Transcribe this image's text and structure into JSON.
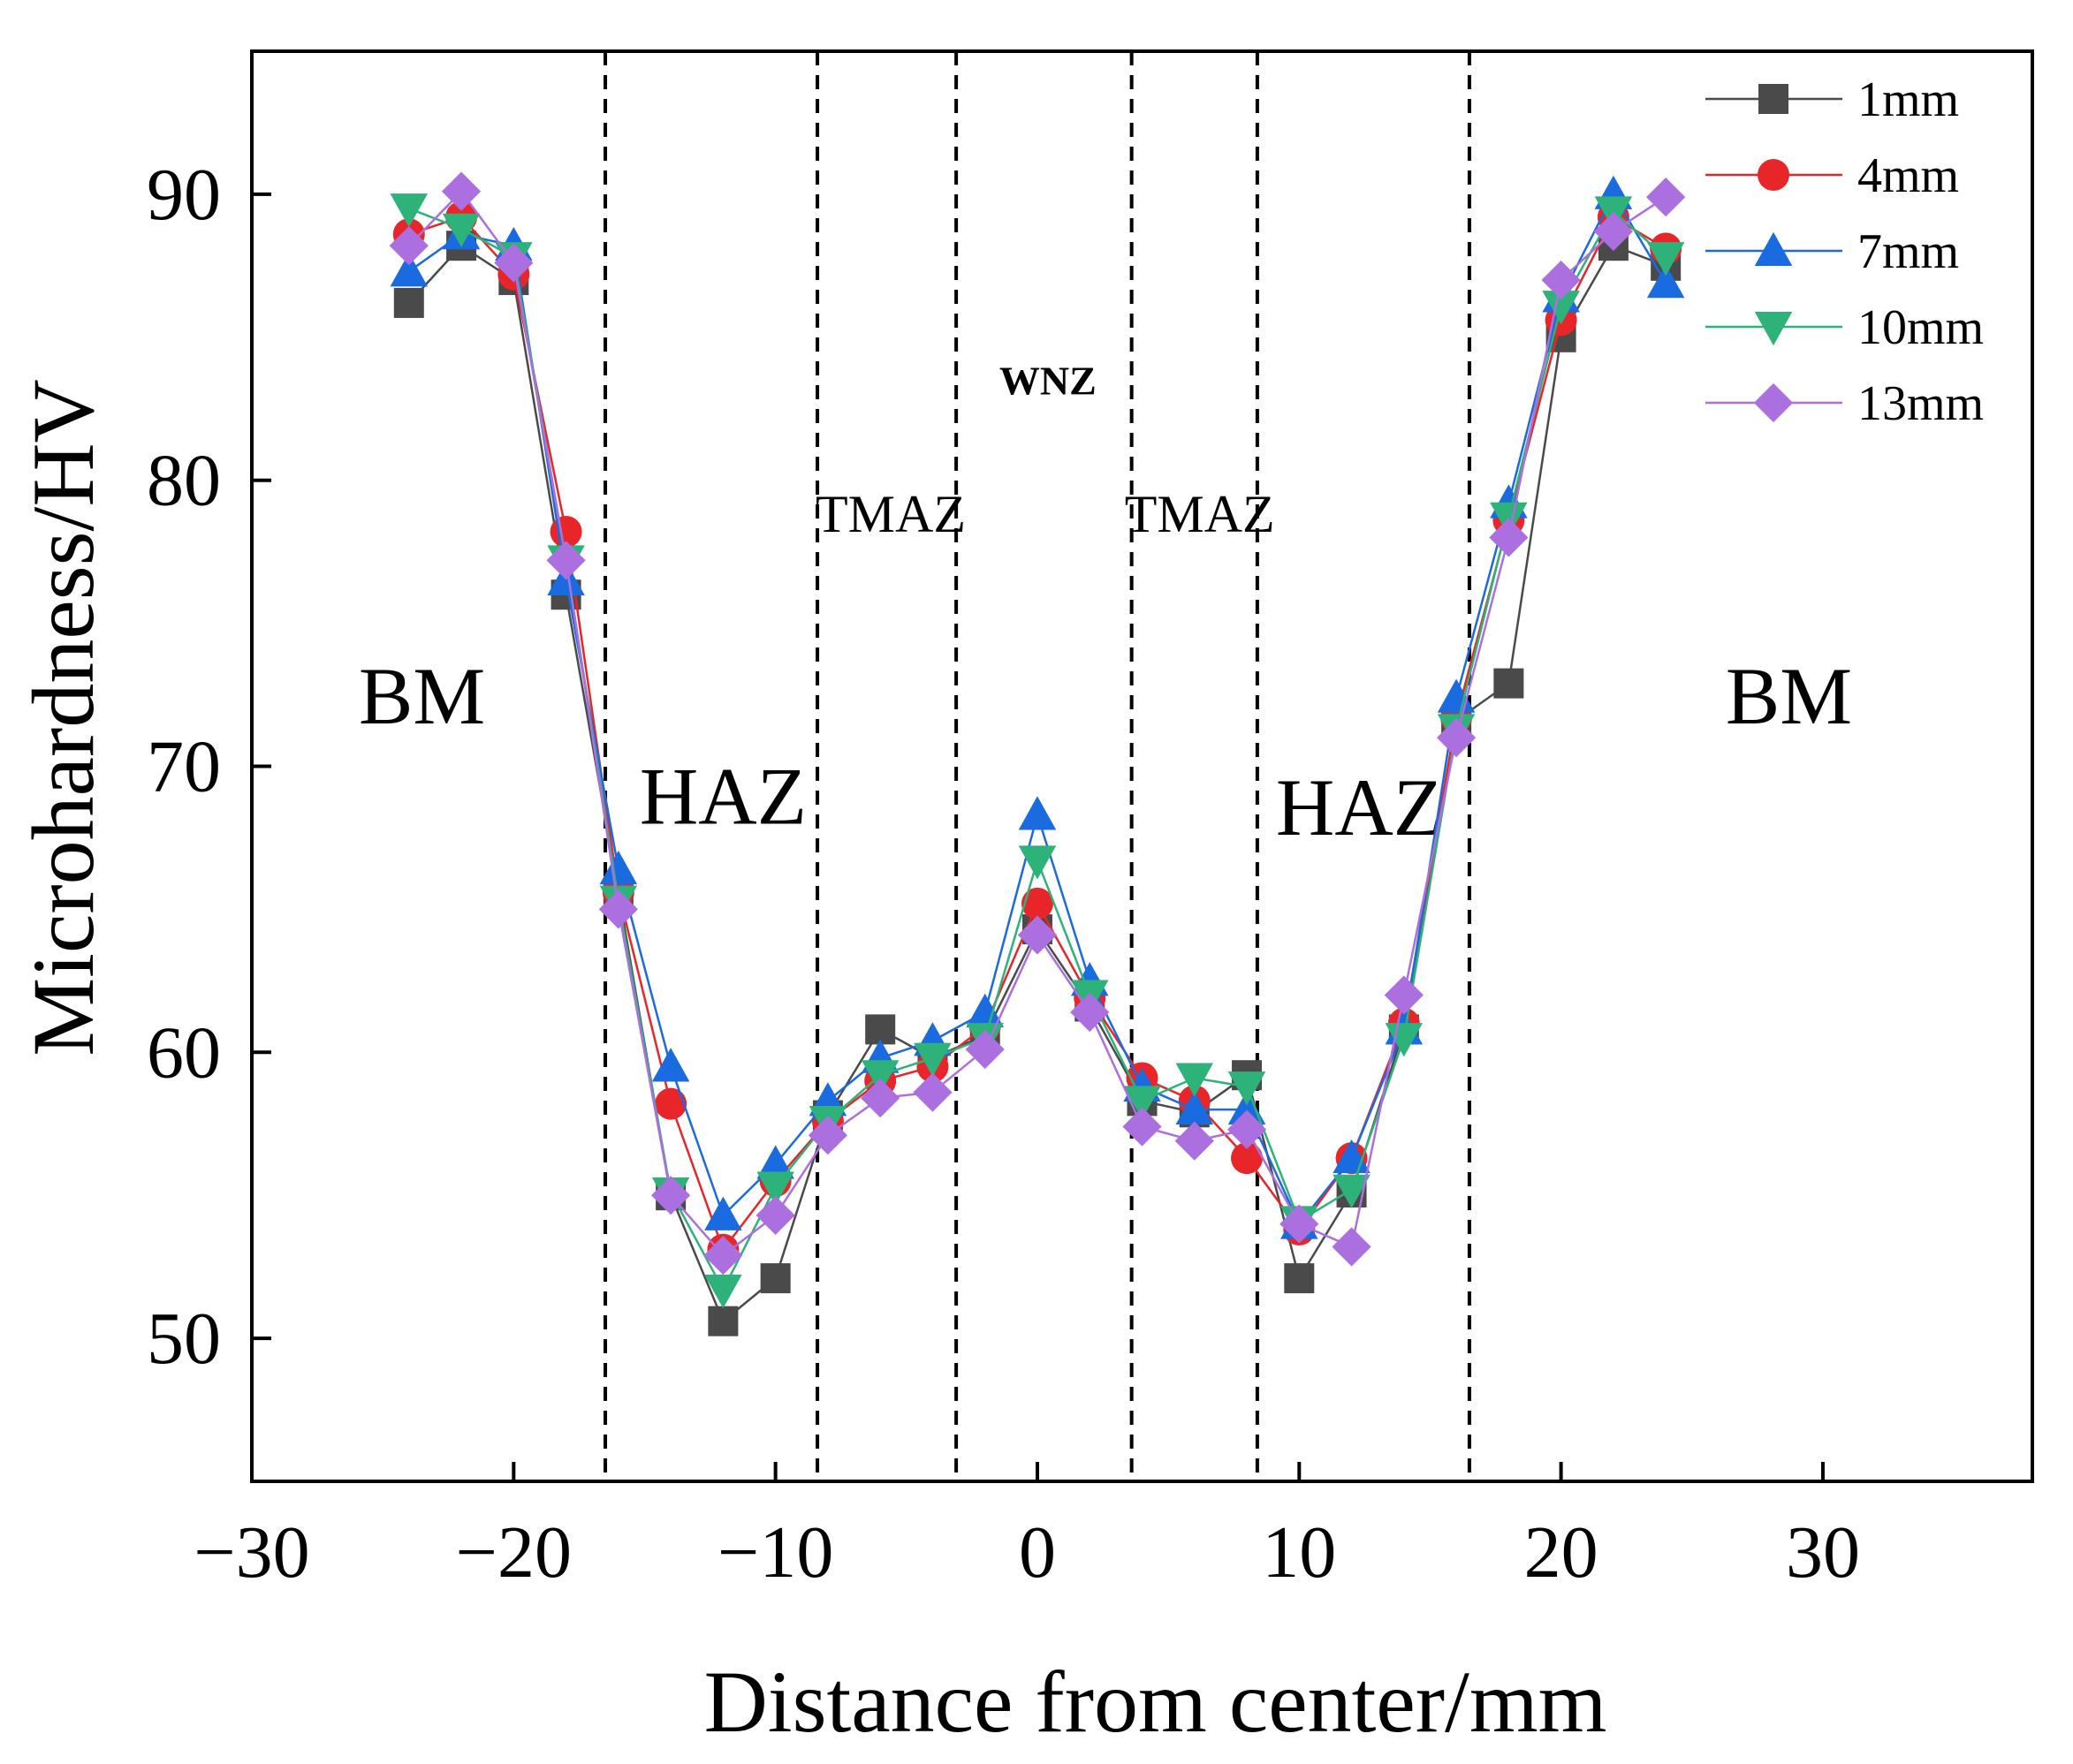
{
  "chart_data": {
    "type": "line",
    "xlabel": "Distance from center/mm",
    "ylabel": "Microhardness/HV",
    "xlim": [
      -30,
      38
    ],
    "ylim": [
      45,
      95
    ],
    "xticks": [
      -30,
      -20,
      -10,
      0,
      10,
      20,
      30
    ],
    "xtick_labels": [
      "−30",
      "−20",
      "−10",
      "0",
      "10",
      "20",
      "30"
    ],
    "yticks": [
      50,
      60,
      70,
      80,
      90
    ],
    "ytick_labels": [
      "50",
      "60",
      "70",
      "80",
      "90"
    ],
    "grid": false,
    "legend_position": "top-right",
    "zone_boundaries": [
      -16.5,
      -8.4,
      -3.1,
      3.6,
      8.4,
      16.5
    ],
    "regions": [
      {
        "label": "BM",
        "x": -23.5,
        "y": 71.5,
        "size": "large"
      },
      {
        "label": "HAZ",
        "x": -12.0,
        "y": 68.0,
        "size": "large"
      },
      {
        "label": "TMAZ",
        "x": -5.6,
        "y": 78.2,
        "size": "small"
      },
      {
        "label": "WNZ",
        "x": 0.4,
        "y": 83.0,
        "size": "tiny"
      },
      {
        "label": "TMAZ",
        "x": 6.2,
        "y": 78.2,
        "size": "small"
      },
      {
        "label": "HAZ",
        "x": 12.3,
        "y": 67.6,
        "size": "large"
      },
      {
        "label": "BM",
        "x": 28.7,
        "y": 71.5,
        "size": "large"
      }
    ],
    "x": [
      -24,
      -22,
      -20,
      -18,
      -16,
      -14,
      -12,
      -10,
      -8,
      -6,
      -4,
      -2,
      0,
      2,
      4,
      6,
      8,
      10,
      12,
      14,
      16,
      18,
      20,
      22,
      24
    ],
    "series": [
      {
        "name": "1mm",
        "color": "#4a4a4a",
        "marker": "square",
        "values": [
          86.2,
          88.2,
          87.0,
          76.0,
          65.6,
          55.0,
          50.6,
          52.1,
          57.8,
          60.8,
          59.8,
          60.6,
          64.3,
          61.6,
          58.3,
          57.9,
          59.2,
          52.1,
          55.1,
          60.8,
          71.6,
          72.9,
          85.0,
          88.2,
          87.5
        ]
      },
      {
        "name": "4mm",
        "color": "#e8262a",
        "marker": "circle",
        "values": [
          88.6,
          89.2,
          87.2,
          78.2,
          65.6,
          58.2,
          53.1,
          55.5,
          57.6,
          59.0,
          59.5,
          60.9,
          65.2,
          61.9,
          59.1,
          58.3,
          56.3,
          53.8,
          56.3,
          61.0,
          71.7,
          78.6,
          85.6,
          89.2,
          88.1
        ]
      },
      {
        "name": "7mm",
        "color": "#1a6ae0",
        "marker": "triangle-up",
        "values": [
          87.3,
          88.6,
          88.2,
          76.5,
          66.4,
          59.5,
          54.3,
          56.1,
          58.3,
          59.8,
          60.4,
          61.4,
          68.3,
          62.5,
          58.8,
          58.0,
          58.0,
          54.0,
          56.3,
          60.8,
          72.4,
          79.2,
          86.4,
          90.0,
          86.9
        ]
      },
      {
        "name": "10mm",
        "color": "#2db27a",
        "marker": "triangle-down",
        "values": [
          89.5,
          88.8,
          87.8,
          77.2,
          65.3,
          55.1,
          51.7,
          55.3,
          57.6,
          59.2,
          59.8,
          60.5,
          66.7,
          62.0,
          58.3,
          59.1,
          58.8,
          54.1,
          55.2,
          60.5,
          71.3,
          78.7,
          86.1,
          89.4,
          87.8
        ]
      },
      {
        "name": "13mm",
        "color": "#ac6fe0",
        "marker": "diamond",
        "values": [
          88.2,
          90.1,
          87.6,
          77.2,
          65.0,
          55.0,
          52.9,
          54.3,
          57.1,
          58.4,
          58.6,
          60.1,
          64.1,
          61.4,
          57.4,
          56.9,
          57.3,
          54.0,
          53.2,
          62.0,
          71.0,
          78.0,
          87.0,
          88.7,
          89.9
        ]
      }
    ]
  }
}
